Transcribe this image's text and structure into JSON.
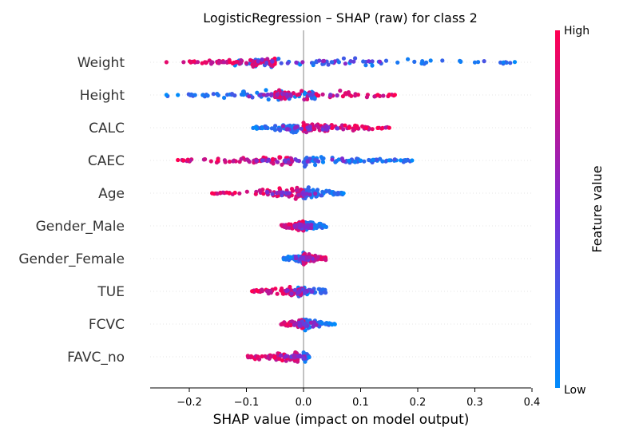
{
  "chart_data": {
    "type": "scatter",
    "subtype": "shap-beeswarm",
    "title": "LogisticRegression – SHAP (raw) for class 2",
    "xlabel": "SHAP value (impact on model output)",
    "xlim": [
      -0.27,
      0.41
    ],
    "xticks": [
      -0.2,
      -0.1,
      0.0,
      0.1,
      0.2,
      0.3,
      0.4
    ],
    "xtick_labels": [
      "−0.2",
      "−0.1",
      "0.0",
      "0.1",
      "0.2",
      "0.3",
      "0.4"
    ],
    "colorbar": {
      "title": "Feature value",
      "high_label": "High",
      "low_label": "Low",
      "high_color": "#ff0052",
      "mid_color": "#7b2bd4",
      "low_color": "#008bfb"
    },
    "features": [
      {
        "name": "Weight",
        "low_range": [
          -0.12,
          0.37
        ],
        "high_range": [
          -0.2,
          -0.05
        ],
        "sparse_points": [
          [
            -0.24,
            0.9
          ],
          [
            -0.21,
            0.8
          ],
          [
            0.05,
            0.2
          ],
          [
            0.3,
            0.1
          ],
          [
            0.35,
            0.05
          ],
          [
            0.37,
            0.0
          ]
        ]
      },
      {
        "name": "Height",
        "low_range": [
          -0.24,
          0.02
        ],
        "high_range": [
          -0.05,
          0.16
        ],
        "sparse_points": [
          [
            -0.24,
            0.0
          ],
          [
            -0.22,
            0.0
          ],
          [
            -0.19,
            0.1
          ],
          [
            0.13,
            1.0
          ],
          [
            0.15,
            1.0
          ],
          [
            0.16,
            1.0
          ]
        ]
      },
      {
        "name": "CALC",
        "low_range": [
          -0.09,
          -0.01
        ],
        "high_range": [
          0.0,
          0.15
        ],
        "sparse_points": [
          [
            0.05,
            1.0
          ],
          [
            0.08,
            1.0
          ],
          [
            0.11,
            1.0
          ],
          [
            0.13,
            1.0
          ],
          [
            0.15,
            1.0
          ]
        ]
      },
      {
        "name": "CAEC",
        "low_range": [
          0.0,
          0.19
        ],
        "high_range": [
          -0.22,
          -0.02
        ],
        "sparse_points": [
          [
            -0.22,
            1.0
          ],
          [
            -0.21,
            1.0
          ],
          [
            -0.15,
            1.0
          ],
          [
            0.08,
            0.0
          ],
          [
            0.1,
            0.0
          ],
          [
            0.15,
            0.0
          ],
          [
            0.17,
            0.0
          ],
          [
            0.19,
            0.0
          ]
        ]
      },
      {
        "name": "Age",
        "low_range": [
          0.0,
          0.07
        ],
        "high_range": [
          -0.16,
          0.0
        ],
        "sparse_points": [
          [
            -0.16,
            1.0
          ],
          [
            -0.13,
            1.0
          ],
          [
            -0.12,
            1.0
          ],
          [
            0.07,
            0.0
          ]
        ]
      },
      {
        "name": "Gender_Male",
        "low_range": [
          0.0,
          0.04
        ],
        "high_range": [
          -0.04,
          0.0
        ],
        "sparse_points": []
      },
      {
        "name": "Gender_Female",
        "low_range": [
          -0.035,
          0.0
        ],
        "high_range": [
          0.0,
          0.04
        ],
        "sparse_points": []
      },
      {
        "name": "TUE",
        "low_range": [
          -0.01,
          0.04
        ],
        "high_range": [
          -0.09,
          0.0
        ],
        "sparse_points": [
          [
            -0.09,
            1.0
          ],
          [
            -0.08,
            1.0
          ]
        ]
      },
      {
        "name": "FCVC",
        "low_range": [
          0.0,
          0.055
        ],
        "high_range": [
          -0.04,
          0.0
        ],
        "sparse_points": [
          [
            0.055,
            0.0
          ]
        ]
      },
      {
        "name": "FAVC_no",
        "low_range": [
          0.0,
          0.01
        ],
        "high_range": [
          -0.1,
          -0.01
        ],
        "sparse_points": []
      }
    ]
  }
}
